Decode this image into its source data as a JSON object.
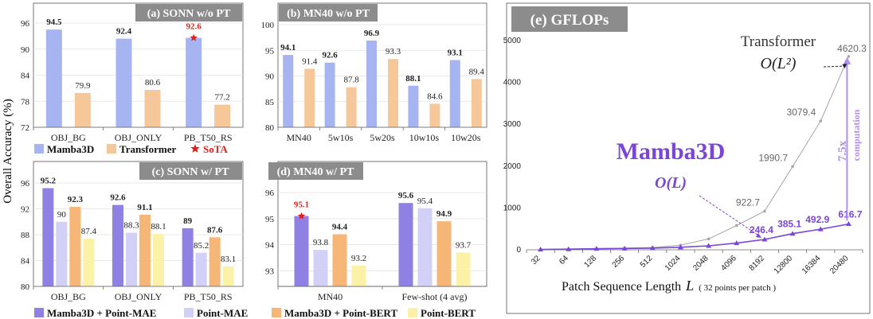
{
  "shared": {
    "ylabel": "Overall Accuracy (%)",
    "colors": {
      "mamba": "#a6b4f2",
      "transformer": "#f5c799",
      "mamba_mae": "#8f80e3",
      "point_mae": "#d2d0f7",
      "mamba_bert": "#f6b677",
      "point_bert": "#fbf1a7",
      "sota": "#e0201c",
      "header": "#8c8c8c",
      "line_mamba": "#7a45d8",
      "line_transformer": "#a6a6a6"
    },
    "legend_top": [
      {
        "label": "Mamba3D",
        "color_key": "mamba"
      },
      {
        "label": "Transformer",
        "color_key": "transformer"
      },
      {
        "label": "SoTA",
        "color_key": "sota",
        "marker": "star"
      }
    ],
    "legend_bottom": [
      {
        "label": "Mamba3D + Point-MAE",
        "color_key": "mamba_mae"
      },
      {
        "label": "Point-MAE",
        "color_key": "point_mae"
      },
      {
        "label": "Mamba3D + Point-BERT",
        "color_key": "mamba_bert"
      },
      {
        "label": "Point-BERT",
        "color_key": "point_bert"
      }
    ]
  },
  "chart_data": [
    {
      "id": "a",
      "type": "bar",
      "title": "(a) SONN w/o PT",
      "categories": [
        "OBJ_BG",
        "OBJ_ONLY",
        "PB_T50_RS"
      ],
      "ylim": [
        72,
        96
      ],
      "yticks": [
        72,
        78,
        84,
        90,
        96
      ],
      "series": [
        {
          "name": "Mamba3D",
          "color_key": "mamba",
          "values": [
            94.5,
            92.4,
            92.6
          ],
          "bold_labels": true
        },
        {
          "name": "Transformer",
          "color_key": "transformer",
          "values": [
            79.9,
            80.6,
            77.2
          ],
          "bold_labels": false
        }
      ],
      "sota": [
        {
          "series": 0,
          "index": 2
        }
      ]
    },
    {
      "id": "b",
      "type": "bar",
      "title": "(b) MN40 w/o PT",
      "categories": [
        "MN40",
        "5w10s",
        "5w20s",
        "10w10s",
        "10w20s"
      ],
      "ylim": [
        80,
        100
      ],
      "yticks": [
        80,
        85,
        90,
        95,
        100
      ],
      "series": [
        {
          "name": "Mamba3D",
          "color_key": "mamba",
          "values": [
            94.1,
            92.6,
            96.9,
            88.1,
            93.1
          ],
          "bold_labels": true
        },
        {
          "name": "Transformer",
          "color_key": "transformer",
          "values": [
            91.4,
            87.8,
            93.3,
            84.6,
            89.4
          ],
          "bold_labels": false
        }
      ],
      "sota": []
    },
    {
      "id": "c",
      "type": "bar",
      "title": "(c) SONN w/ PT",
      "categories": [
        "OBJ_BG",
        "OBJ_ONLY",
        "PB_T50_RS"
      ],
      "ylim": [
        80,
        96
      ],
      "yticks": [
        80,
        84,
        88,
        92,
        96
      ],
      "series": [
        {
          "name": "Mamba3D + Point-MAE",
          "color_key": "mamba_mae",
          "values": [
            95.2,
            92.6,
            89
          ],
          "bold_labels": true
        },
        {
          "name": "Point-MAE",
          "color_key": "point_mae",
          "values": [
            90,
            88.3,
            85.2
          ],
          "bold_labels": false
        },
        {
          "name": "Mamba3D + Point-BERT",
          "color_key": "mamba_bert",
          "values": [
            92.3,
            91.1,
            87.6
          ],
          "bold_labels": true
        },
        {
          "name": "Point-BERT",
          "color_key": "point_bert",
          "values": [
            87.4,
            88.1,
            83.1
          ],
          "bold_labels": false
        }
      ],
      "sota": []
    },
    {
      "id": "d",
      "type": "bar",
      "title": "(d) MN40 w/ PT",
      "categories": [
        "MN40",
        "Few-shot (4 avg)"
      ],
      "ylim": [
        92.4,
        96.4
      ],
      "yticks": [
        93,
        94,
        95,
        96
      ],
      "series": [
        {
          "name": "Mamba3D + Point-MAE",
          "color_key": "mamba_mae",
          "values": [
            95.1,
            95.6
          ],
          "bold_labels": true
        },
        {
          "name": "Point-MAE",
          "color_key": "point_mae",
          "values": [
            93.8,
            95.4
          ],
          "bold_labels": false
        },
        {
          "name": "Mamba3D + Point-BERT",
          "color_key": "mamba_bert",
          "values": [
            94.4,
            94.9
          ],
          "bold_labels": true
        },
        {
          "name": "Point-BERT",
          "color_key": "point_bert",
          "values": [
            93.2,
            93.7
          ],
          "bold_labels": false
        }
      ],
      "sota": [
        {
          "series": 0,
          "index": 0
        }
      ]
    },
    {
      "id": "e",
      "type": "line",
      "title": "(e) GFLOPs",
      "x": [
        32,
        64,
        128,
        256,
        512,
        1024,
        2048,
        4096,
        8192,
        12800,
        16384,
        20480
      ],
      "ylim": [
        0,
        5000
      ],
      "yticks": [
        0,
        1000,
        2000,
        3000,
        4000,
        5000
      ],
      "xlabel": "Patch Sequence Length",
      "xlabel_symbol": "L",
      "xlabel_note": "( 32 points per patch )",
      "series": [
        {
          "name": "Transformer",
          "color_key": "line_transformer",
          "values": [
            9,
            18,
            30,
            40,
            55,
            110,
            260,
            580,
            922.7,
            1990.7,
            3079.4,
            4620.3
          ],
          "labeled": {
            "8": "922.7",
            "9": "1990.7",
            "10": "3079.4",
            "11": "4620.3"
          }
        },
        {
          "name": "Mamba3D",
          "color_key": "line_mamba",
          "values": [
            8,
            15,
            25,
            32,
            40,
            60,
            95,
            160,
            246.4,
            385.1,
            492.9,
            616.7
          ],
          "labeled": {
            "8": "246.4",
            "9": "385.1",
            "10": "492.9",
            "11": "616.7"
          }
        }
      ],
      "annotations": {
        "transformer_name": "Transformer",
        "transformer_complexity": "O(L²)",
        "mamba_name": "Mamba3D",
        "mamba_complexity": "O(L)",
        "ratio": "7.5x",
        "ratio_note": "computation"
      }
    }
  ]
}
